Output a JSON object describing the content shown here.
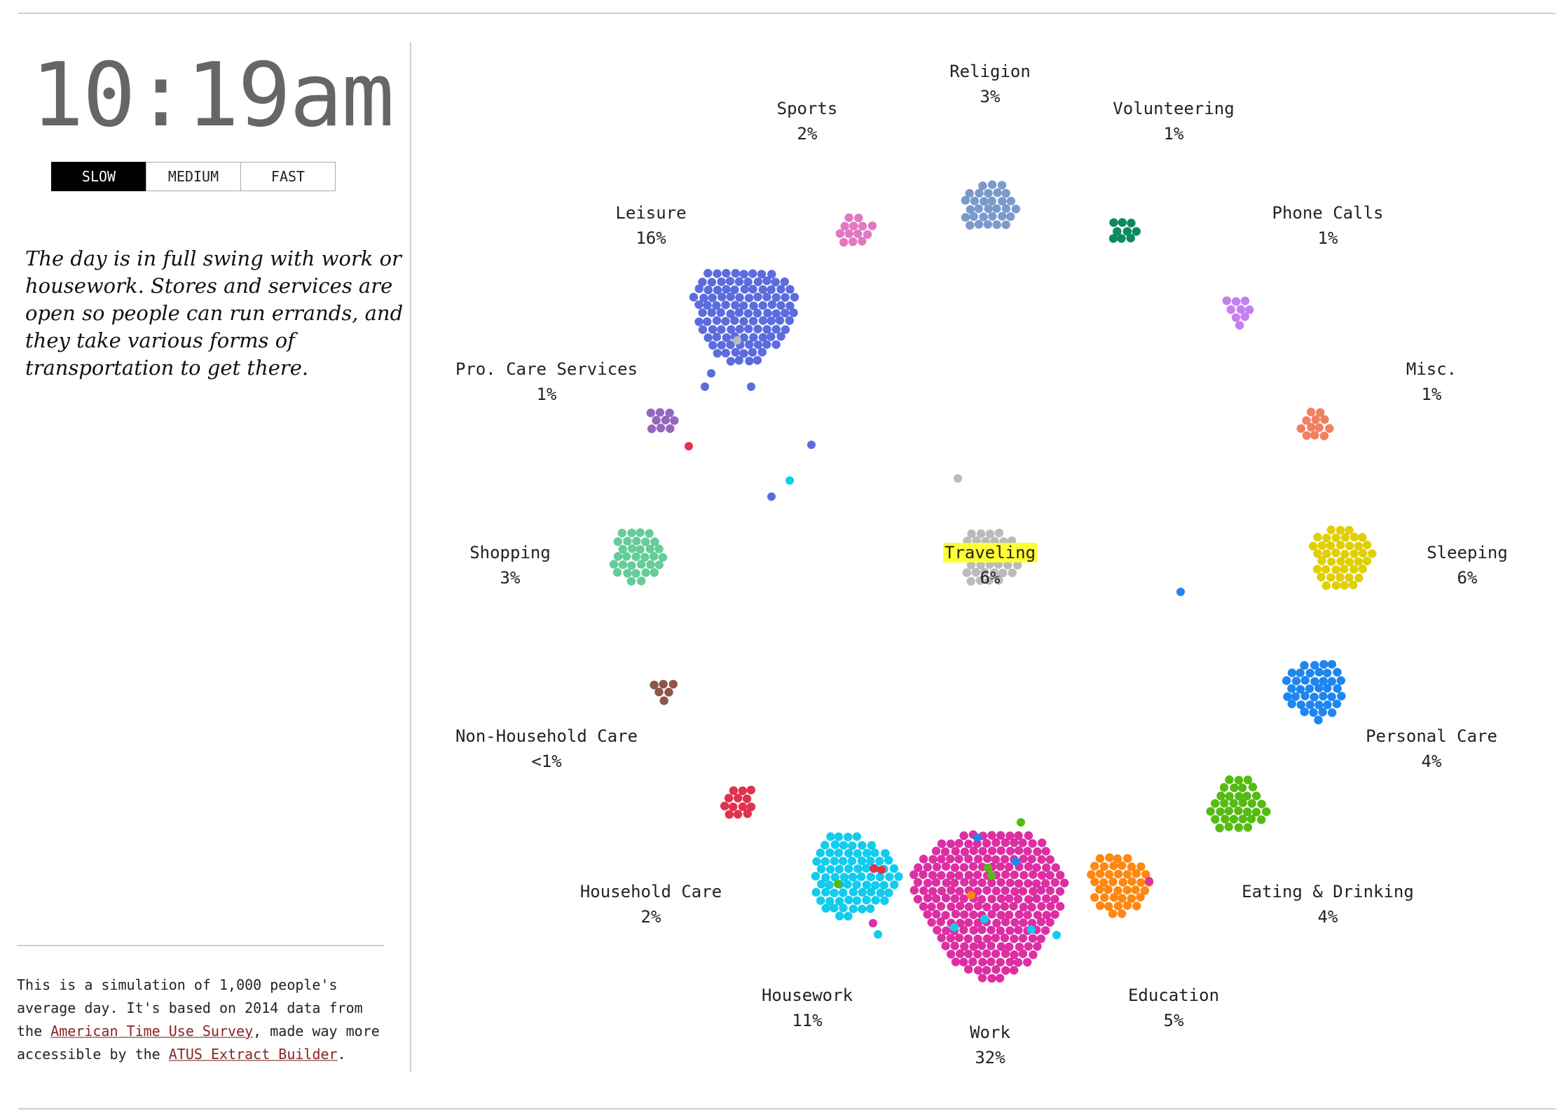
{
  "clock": "10:19am",
  "speed": {
    "options": [
      "SLOW",
      "MEDIUM",
      "FAST"
    ],
    "selected": "SLOW"
  },
  "narrative": "The day is in full swing with work or housework. Stores and services are open so people can run errands, and they take various forms of transportation to get there.",
  "footnote": {
    "part1": "This is a simulation of 1,000 people's average day. It's based on 2014 data from the ",
    "link1": "American Time Use Survey",
    "part2": ", made way more accessible by the ",
    "link2": "ATUS Extract Builder",
    "part3": "."
  },
  "highlighted": "Traveling",
  "activities": [
    {
      "id": "religion",
      "name": "Religion",
      "percent": "3%",
      "color": "#7b9acc"
    },
    {
      "id": "sports",
      "name": "Sports",
      "percent": "2%",
      "color": "#e377c2"
    },
    {
      "id": "volunteering",
      "name": "Volunteering",
      "percent": "1%",
      "color": "#0b8a5e"
    },
    {
      "id": "leisure",
      "name": "Leisure",
      "percent": "16%",
      "color": "#5b6cdf"
    },
    {
      "id": "phone-calls",
      "name": "Phone Calls",
      "percent": "1%",
      "color": "#c77ff0"
    },
    {
      "id": "pro-care-services",
      "name": "Pro. Care Services",
      "percent": "1%",
      "color": "#9467bd"
    },
    {
      "id": "misc",
      "name": "Misc.",
      "percent": "1%",
      "color": "#f08060"
    },
    {
      "id": "shopping",
      "name": "Shopping",
      "percent": "3%",
      "color": "#66cc99"
    },
    {
      "id": "traveling",
      "name": "Traveling",
      "percent": "6%",
      "color": "#bbbbbb"
    },
    {
      "id": "sleeping",
      "name": "Sleeping",
      "percent": "6%",
      "color": "#e0d000"
    },
    {
      "id": "non-household-care",
      "name": "Non-Household Care",
      "percent": "<1%",
      "color": "#8c564b"
    },
    {
      "id": "personal-care",
      "name": "Personal Care",
      "percent": "4%",
      "color": "#1f86f0"
    },
    {
      "id": "household-care",
      "name": "Household Care",
      "percent": "2%",
      "color": "#e0324e"
    },
    {
      "id": "eating-drinking",
      "name": "Eating & Drinking",
      "percent": "4%",
      "color": "#55bb11"
    },
    {
      "id": "housework",
      "name": "Housework",
      "percent": "11%",
      "color": "#11ccee"
    },
    {
      "id": "education",
      "name": "Education",
      "percent": "5%",
      "color": "#ff8811"
    },
    {
      "id": "work",
      "name": "Work",
      "percent": "32%",
      "color": "#dd2fa3"
    }
  ]
}
